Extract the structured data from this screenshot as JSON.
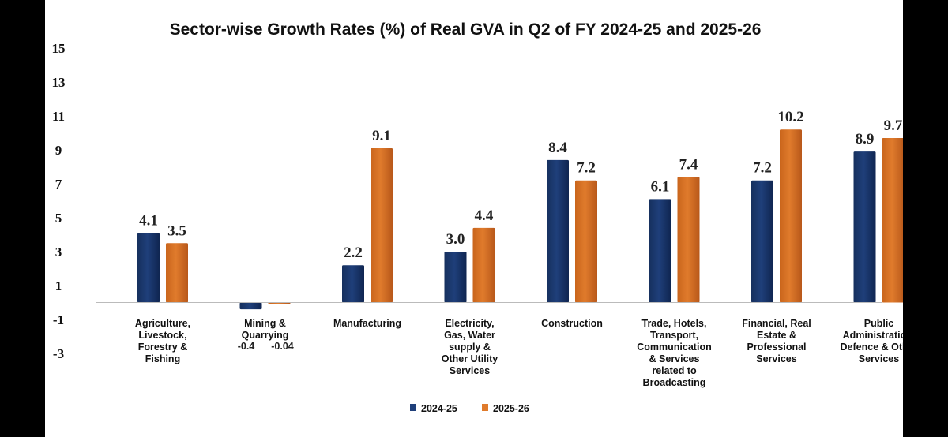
{
  "chart_data": {
    "type": "bar",
    "title": "Sector-wise Growth Rates (%) of Real GVA in Q2 of FY 2024-25 and 2025-26",
    "categories": [
      "Agriculture, Livestock, Forestry & Fishing",
      "Mining & Quarrying",
      "Manufacturing",
      "Electricity, Gas, Water supply & Other Utility Services",
      "Construction",
      "Trade, Hotels, Transport, Communication & Services related to Broadcasting",
      "Financial, Real Estate & Professional Services",
      "Public Administration, Defence & Other Services"
    ],
    "category_lines": [
      [
        "Agriculture,",
        "Livestock,",
        "Forestry &",
        "Fishing"
      ],
      [
        "Mining &",
        "Quarrying"
      ],
      [
        "Manufacturing"
      ],
      [
        "Electricity,",
        "Gas, Water",
        "supply &",
        "Other Utility",
        "Services"
      ],
      [
        "Construction"
      ],
      [
        "Trade, Hotels,",
        "Transport,",
        "Communication",
        "& Services",
        "related to",
        "Broadcasting"
      ],
      [
        "Financial, Real",
        "Estate &",
        "Professional",
        "Services"
      ],
      [
        "Public",
        "Administration,",
        "Defence & Other",
        "Services"
      ]
    ],
    "series": [
      {
        "name": "2024-25",
        "color": "#1f3f7a",
        "values": [
          4.1,
          -0.4,
          2.2,
          3.0,
          8.4,
          6.1,
          7.2,
          8.9
        ],
        "labels": [
          "4.1",
          "-0.4",
          "2.2",
          "3.0",
          "8.4",
          "6.1",
          "7.2",
          "8.9"
        ]
      },
      {
        "name": "2025-26",
        "color": "#e07b2c",
        "values": [
          3.5,
          -0.04,
          9.1,
          4.4,
          7.2,
          7.4,
          10.2,
          9.7
        ],
        "labels": [
          "3.5",
          "-0.04",
          "9.1",
          "4.4",
          "7.2",
          "7.4",
          "10.2",
          "9.7"
        ]
      }
    ],
    "yticks": [
      "15",
      "13",
      "11",
      "9",
      "7",
      "5",
      "3",
      "1",
      "-1",
      "-3"
    ],
    "ylim": [
      -3,
      15
    ],
    "xlabel": "",
    "ylabel": "",
    "grid": false,
    "legend": "bottom-center"
  }
}
